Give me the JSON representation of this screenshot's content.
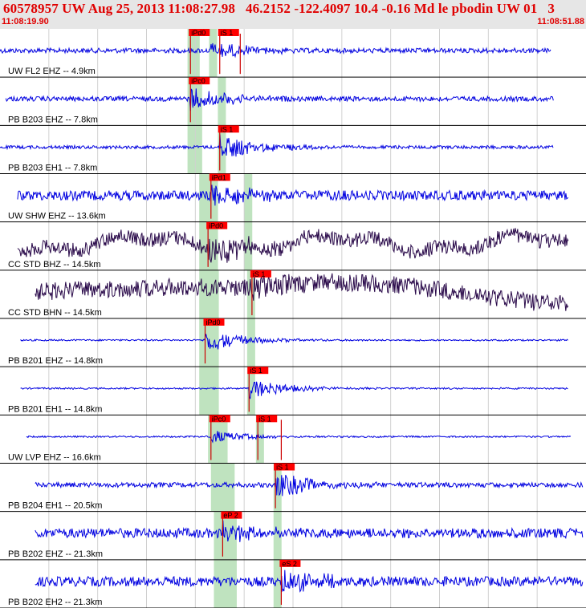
{
  "header": {
    "title": "60578957 UW Aug 25, 2013 11:08:27.98   46.2152 -122.4097 10.4 -0.16 Md le pbodin UW 01   3",
    "start_time": "11:08:19.90",
    "end_time": "11:08:51.88"
  },
  "colors": {
    "header_bg": "#e6e6e6",
    "title": "#e00000",
    "trace_blue": "#0000e0",
    "trace_dark": "#2a0a4a",
    "pick_box": "#ff0000",
    "pick_line": "#cc0000",
    "window_green": "#bfe3bf",
    "divider": "#000000"
  },
  "traces": [
    {
      "label": "UW FL2 EHZ -- 4.9km",
      "color": "blue",
      "amp": 3,
      "onset": 0.36,
      "burst": 10,
      "picks": [
        {
          "name": "iPd0",
          "t": 0.325
        },
        {
          "name": "iS 1",
          "t": 0.375
        }
      ],
      "extra_ticks": [
        0.41
      ],
      "green": [
        0.32,
        0.365
      ],
      "start": 0.0,
      "end": 0.94
    },
    {
      "label": "PB B203 EHZ -- 7.8km",
      "color": "blue",
      "amp": 3,
      "onset": 0.325,
      "burst": 14,
      "picks": [
        {
          "name": "iPc0",
          "t": 0.325
        }
      ],
      "extra_ticks": [],
      "green": [
        0.32,
        0.38
      ],
      "start": 0.01,
      "end": 0.945
    },
    {
      "label": "PB B203 EH1 -- 7.8km",
      "color": "blue",
      "amp": 2,
      "onset": 0.375,
      "burst": 16,
      "picks": [
        {
          "name": "iS 1",
          "t": 0.375
        }
      ],
      "extra_ticks": [],
      "green": [
        0.32,
        0.38
      ],
      "start": 0.0,
      "end": 0.945
    },
    {
      "label": "UW SHW EHZ -- 13.6km",
      "color": "blue",
      "amp": 6,
      "onset": 0.36,
      "burst": 14,
      "picks": [
        {
          "name": "iPd1",
          "t": 0.36
        }
      ],
      "extra_ticks": [],
      "green": [
        0.34,
        0.425
      ],
      "start": 0.03,
      "end": 0.97
    },
    {
      "label": "CC STD BHZ -- 14.5km",
      "color": "dark",
      "amp": 9,
      "onset": 0.355,
      "burst": 14,
      "picks": [
        {
          "name": "iPd0",
          "t": 0.355
        }
      ],
      "extra_ticks": [],
      "green": [
        0.34,
        0.425
      ],
      "start": 0.03,
      "end": 0.97
    },
    {
      "label": "CC STD BHN -- 14.5km",
      "color": "dark",
      "amp": 11,
      "onset": 0.43,
      "burst": 10,
      "picks": [
        {
          "name": "iS 1",
          "t": 0.43
        }
      ],
      "extra_ticks": [],
      "green": [
        0.34,
        0.43
      ],
      "start": 0.06,
      "end": 0.97
    },
    {
      "label": "PB B201 EHZ -- 14.8km",
      "color": "blue",
      "amp": 1,
      "onset": 0.35,
      "burst": 14,
      "picks": [
        {
          "name": "iPd0",
          "t": 0.35
        }
      ],
      "extra_ticks": [],
      "green": [
        0.34,
        0.43
      ],
      "start": 0.035,
      "end": 0.97
    },
    {
      "label": "PB B201 EH1 -- 14.8km",
      "color": "blue",
      "amp": 1,
      "onset": 0.425,
      "burst": 12,
      "picks": [
        {
          "name": "iS 1",
          "t": 0.425
        }
      ],
      "extra_ticks": [],
      "green": [
        0.34,
        0.43
      ],
      "start": 0.035,
      "end": 0.97
    },
    {
      "label": "UW LVP EHZ -- 16.6km",
      "color": "blue",
      "amp": 1,
      "onset": 0.36,
      "burst": 8,
      "picks": [
        {
          "name": "iPc0",
          "t": 0.36
        },
        {
          "name": "iS 1",
          "t": 0.44
        }
      ],
      "extra_ticks": [
        0.48
      ],
      "green": [
        0.355,
        0.445
      ],
      "start": 0.045,
      "end": 0.975
    },
    {
      "label": "PB B204 EH1 -- 20.5km",
      "color": "blue",
      "amp": 3,
      "onset": 0.47,
      "burst": 16,
      "picks": [
        {
          "name": "iS 1",
          "t": 0.47
        }
      ],
      "extra_ticks": [],
      "green": [
        0.36,
        0.475
      ],
      "start": 0.06,
      "end": 0.995
    },
    {
      "label": "PB B202 EHZ -- 21.3km",
      "color": "blue",
      "amp": 6,
      "onset": 0.38,
      "burst": 10,
      "picks": [
        {
          "name": "eP 2",
          "t": 0.38
        }
      ],
      "extra_ticks": [],
      "green": [
        0.365,
        0.475
      ],
      "start": 0.06,
      "end": 0.995
    },
    {
      "label": "PB B202 EH2 -- 21.3km",
      "color": "blue",
      "amp": 6,
      "onset": 0.48,
      "burst": 14,
      "picks": [
        {
          "name": "eS 2",
          "t": 0.48
        }
      ],
      "extra_ticks": [],
      "green": [
        0.365,
        0.475
      ],
      "start": 0.06,
      "end": 0.995
    }
  ]
}
